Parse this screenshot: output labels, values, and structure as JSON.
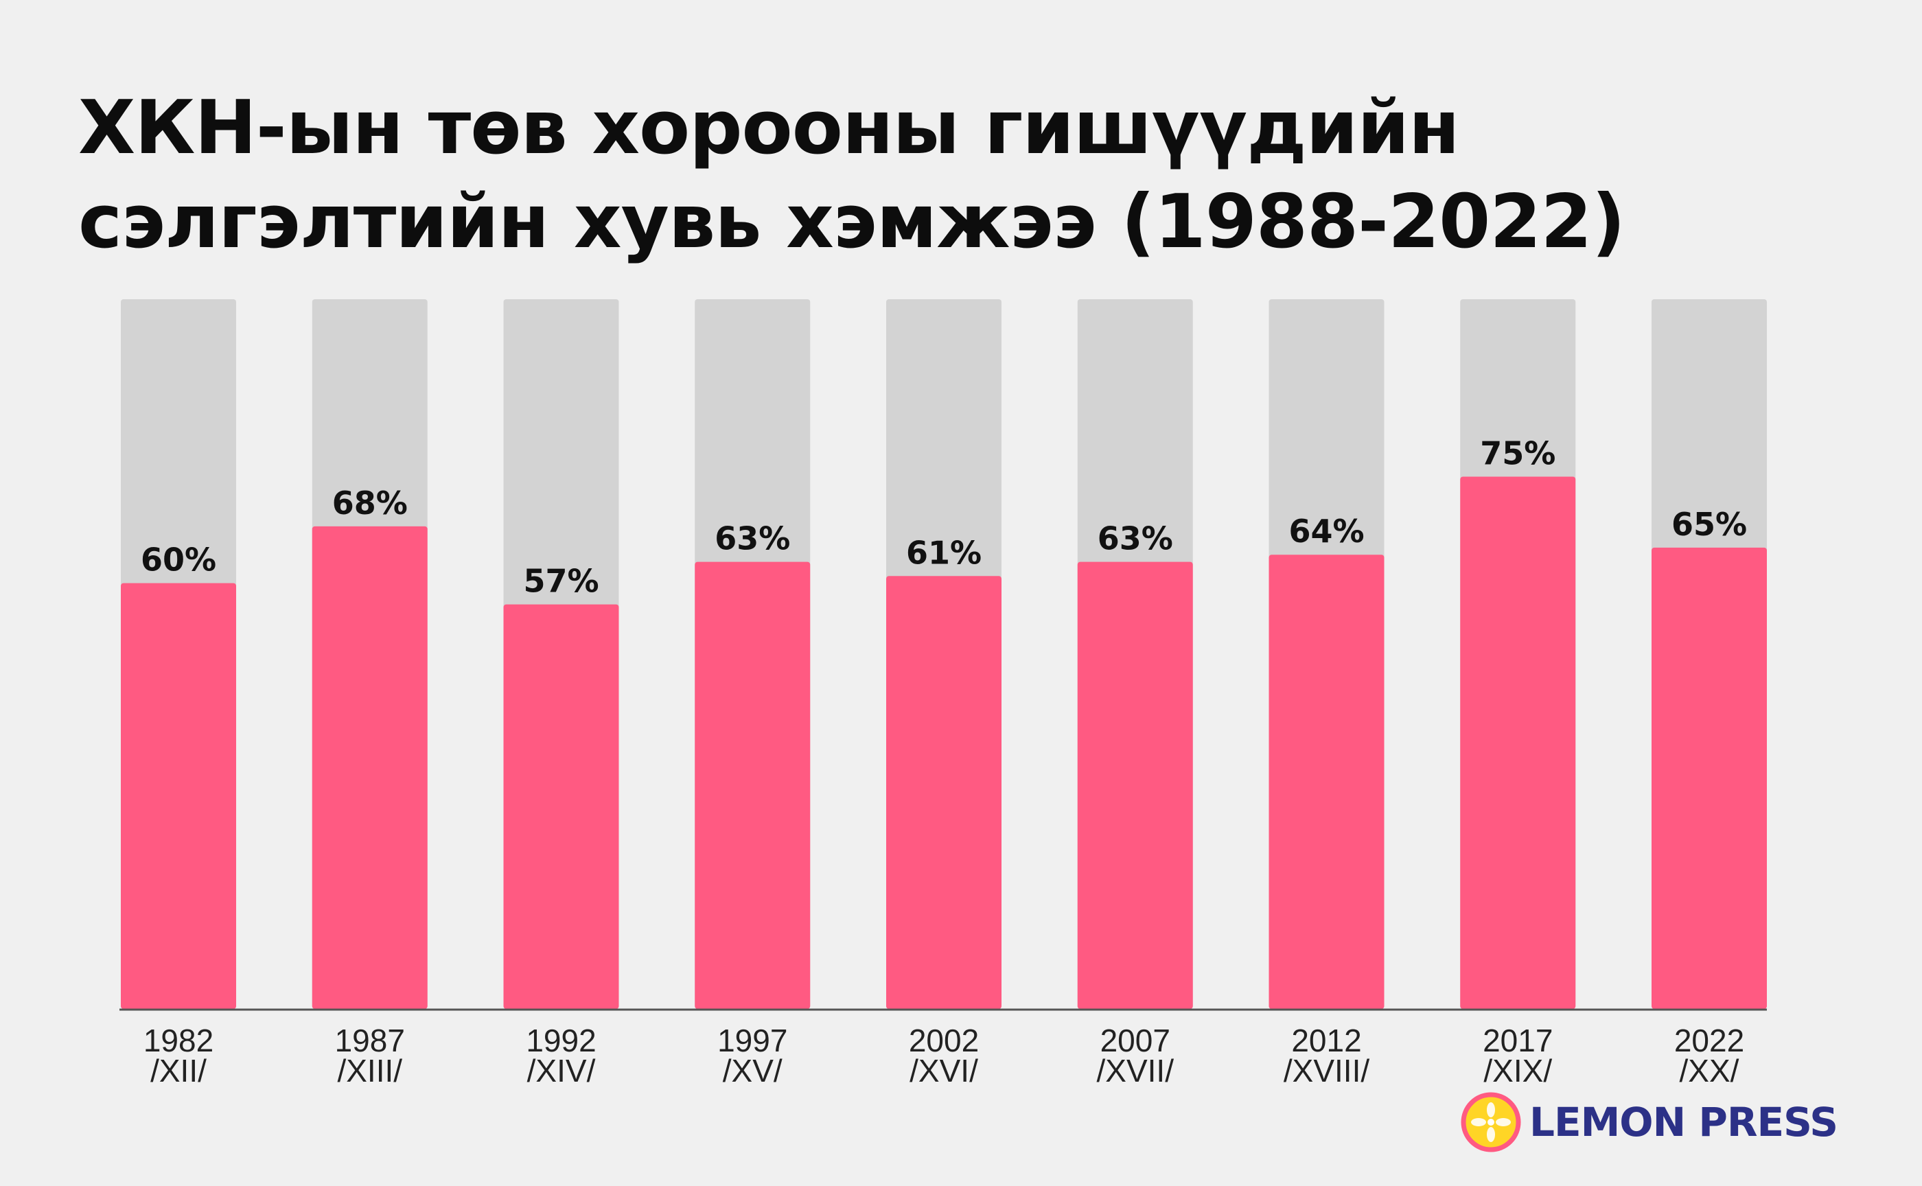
{
  "title_line1": "ХКН-ын төв хорооны гишүүдийн",
  "title_line2": "сэлгэлтийн хувь хэмжээ (1988-2022)",
  "logo_text": "LEMON PRESS",
  "colors": {
    "bar": "#ff5a82",
    "bar_background": "#d3d3d3",
    "axis": "#555555",
    "logo_text": "#2c3187",
    "logo_ring": "#ff5a82",
    "logo_fill": "#ffd526"
  },
  "chart_data": {
    "type": "bar",
    "title": "ХКН-ын төв хорооны гишүүдийн сэлгэлтийн хувь хэмжээ (1988-2022)",
    "categories": [
      [
        "1982",
        "/XII/"
      ],
      [
        "1987",
        "/XIII/"
      ],
      [
        "1992",
        "/XIV/"
      ],
      [
        "1997",
        "/XV/"
      ],
      [
        "2002",
        "/XVI/"
      ],
      [
        "2007",
        "/XVII/"
      ],
      [
        "2012",
        "/XVIII/"
      ],
      [
        "2017",
        "/XIX/"
      ],
      [
        "2022",
        "/XX/"
      ]
    ],
    "values": [
      60,
      68,
      57,
      63,
      61,
      63,
      64,
      75,
      65
    ],
    "labels": [
      "60%",
      "68%",
      "57%",
      "63%",
      "61%",
      "63%",
      "64%",
      "75%",
      "65%"
    ],
    "ylim": [
      0,
      100
    ],
    "background_bars": true,
    "grid": false,
    "legend": "none"
  }
}
